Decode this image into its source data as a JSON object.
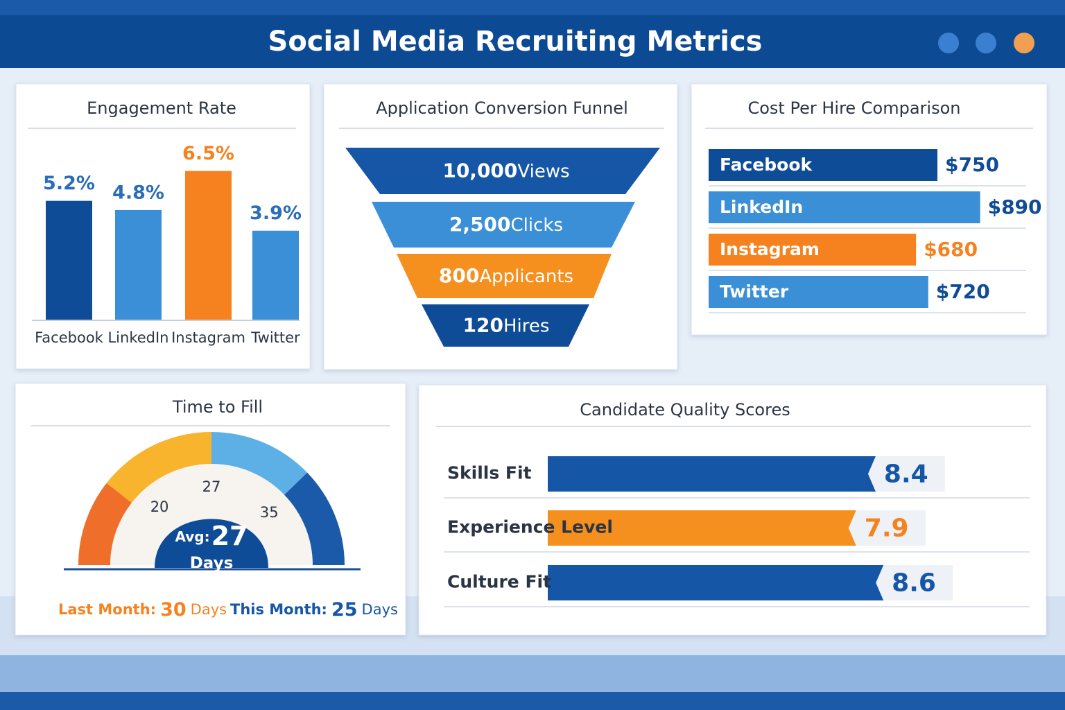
{
  "header": {
    "title": "Social Media Recruiting Metrics"
  },
  "chart_data": [
    {
      "type": "bar",
      "title": "Engagement Rate",
      "categories": [
        "Facebook",
        "LinkedIn",
        "Instagram",
        "Twitter"
      ],
      "values": [
        5.2,
        4.8,
        6.5,
        3.9
      ],
      "value_labels": [
        "5.2%",
        "4.8%",
        "6.5%",
        "3.9%"
      ],
      "colors": [
        "#0f4c97",
        "#3a8fd6",
        "#f5821f",
        "#3a8fd6"
      ],
      "label_colors": [
        "#2a6db8",
        "#2a6db8",
        "#f5821f",
        "#2a6db8"
      ],
      "ylim": [
        0,
        7
      ]
    },
    {
      "type": "funnel",
      "title": "Application Conversion Funnel",
      "categories": [
        "Views",
        "Clicks",
        "Applicants",
        "Hires"
      ],
      "values": [
        10000,
        2500,
        800,
        120
      ],
      "value_labels": [
        "10,000",
        "2,500",
        "800",
        "120"
      ],
      "colors": [
        "#1556a6",
        "#3a8fd6",
        "#f5901f",
        "#0f4c97"
      ]
    },
    {
      "type": "hbar",
      "title": "Cost Per Hire Comparison",
      "categories": [
        "Facebook",
        "LinkedIn",
        "Instagram",
        "Twitter"
      ],
      "values": [
        750,
        890,
        680,
        720
      ],
      "value_labels": [
        "$750",
        "$890",
        "$680",
        "$720"
      ],
      "colors": [
        "#0f4c97",
        "#3a8fd6",
        "#f5821f",
        "#3a8fd6"
      ],
      "label_colors": [
        "#0f4c97",
        "#0f4c97",
        "#f5821f",
        "#0f4c97"
      ],
      "xlim": [
        0,
        1000
      ]
    },
    {
      "type": "gauge",
      "title": "Time to Fill",
      "value": 27,
      "value_prefix": "Avg:",
      "unit": "Days",
      "lim": [
        12,
        42
      ],
      "ticks": [
        20,
        27,
        35
      ],
      "comparisons": [
        {
          "label": "Last Month:",
          "value": 30,
          "color": "#f5821f"
        },
        {
          "label": "This Month:",
          "value": 25,
          "color": "#1556a6"
        }
      ]
    },
    {
      "type": "quality",
      "title": "Candidate Quality Scores",
      "categories": [
        "Skills Fit",
        "Experience Level",
        "Culture Fit"
      ],
      "values": [
        8.4,
        7.9,
        8.6
      ],
      "colors": [
        "#1556a6",
        "#f5901f",
        "#1556a6"
      ],
      "label_colors": [
        "#1556a6",
        "#f5821f",
        "#1556a6"
      ],
      "xlim": [
        0,
        10
      ]
    }
  ]
}
